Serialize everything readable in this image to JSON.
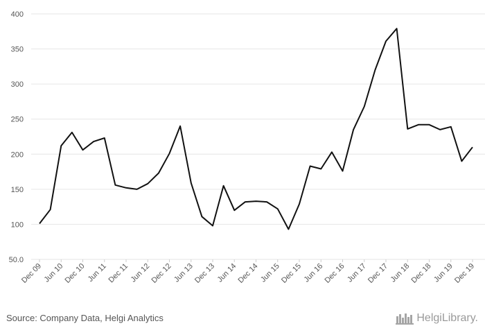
{
  "chart_data": {
    "type": "line",
    "title": "",
    "xlabel": "",
    "ylabel": "",
    "ylim": [
      50,
      400
    ],
    "y_ticks": [
      "400",
      "350",
      "300",
      "250",
      "200",
      "150",
      "100",
      "50.0"
    ],
    "y_tick_values": [
      400,
      350,
      300,
      250,
      200,
      150,
      100,
      50
    ],
    "x_tick_labels": [
      "Dec 09",
      "Jun 10",
      "Dec 10",
      "Jun 11",
      "Dec 11",
      "Jun 12",
      "Dec 12",
      "Jun 13",
      "Dec 13",
      "Jun 14",
      "Dec 14",
      "Jun 15",
      "Dec 15",
      "Jun 16",
      "Dec 16",
      "Jun 17",
      "Dec 17",
      "Jun 18",
      "Dec 18",
      "Jun 19",
      "Dec 19"
    ],
    "grid": true,
    "legend": "none",
    "line_color": "#111111",
    "series": [
      {
        "values": [
          101,
          121,
          212,
          231,
          206,
          218,
          223,
          156,
          152,
          150,
          158,
          173,
          201,
          240,
          159,
          111,
          98,
          155,
          120,
          132,
          133,
          132,
          122,
          93,
          129,
          183,
          179,
          203,
          176,
          235,
          268,
          320,
          361,
          379,
          236,
          242,
          242,
          235,
          239,
          190,
          210
        ]
      }
    ]
  },
  "footer": {
    "source": "Source: Company Data, Helgi Analytics",
    "brand": "HelgiLibrary."
  },
  "colors": {
    "grid": "#e6e6e6",
    "text": "#555555",
    "brand": "#9a9a9a"
  }
}
